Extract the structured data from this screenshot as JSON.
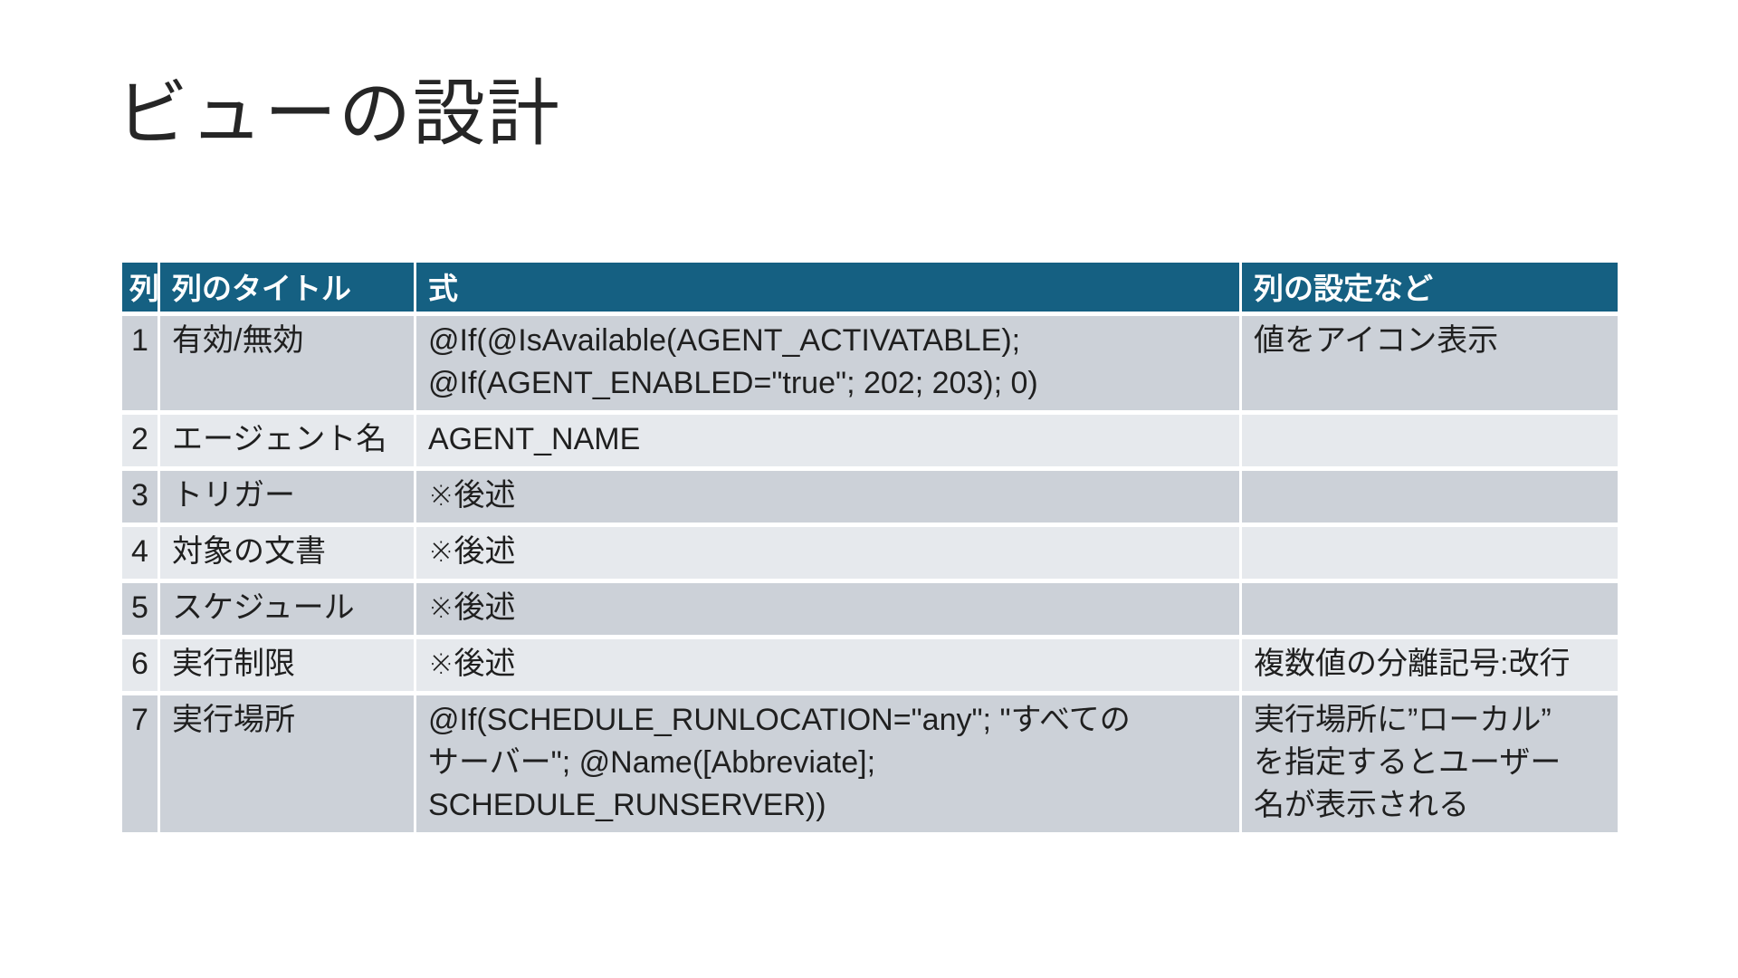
{
  "slide": {
    "title": "ビューの設計",
    "background_color": "#FFFFFF"
  },
  "colors": {
    "header_bg": "#156082",
    "header_text": "#FFFFFF",
    "row_band_dark": "#CCD1D8",
    "row_band_light": "#E6E9ED",
    "body_text": "#1F1F1F",
    "grid_line": "#FFFFFF"
  },
  "table": {
    "headers": {
      "no": "列",
      "title": "列のタイトル",
      "formula": "式",
      "settings": "列の設定など"
    },
    "rows": [
      {
        "no": "1",
        "title": "有効/無効",
        "formula": "@If(@IsAvailable(AGENT_ACTIVATABLE);\n@If(AGENT_ENABLED=\"true\"; 202; 203); 0)",
        "settings": "値をアイコン表示"
      },
      {
        "no": "2",
        "title": "エージェント名",
        "formula": "AGENT_NAME",
        "settings": ""
      },
      {
        "no": "3",
        "title": "トリガー",
        "formula": "※後述",
        "settings": ""
      },
      {
        "no": "4",
        "title": "対象の文書",
        "formula": "※後述",
        "settings": ""
      },
      {
        "no": "5",
        "title": "スケジュール",
        "formula": "※後述",
        "settings": ""
      },
      {
        "no": "6",
        "title": "実行制限",
        "formula": "※後述",
        "settings": "複数値の分離記号:改行"
      },
      {
        "no": "7",
        "title": "実行場所",
        "formula": "@If(SCHEDULE_RUNLOCATION=\"any\"; \"すべての\nサーバー\"; @Name([Abbreviate];\nSCHEDULE_RUNSERVER))",
        "settings": "実行場所に”ローカル”\nを指定するとユーザー\n名が表示される"
      }
    ]
  }
}
